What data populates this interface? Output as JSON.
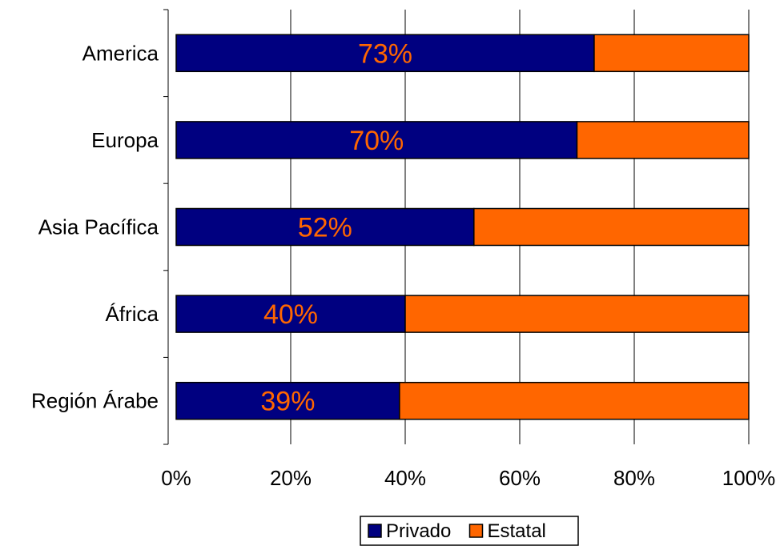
{
  "chart_data": {
    "type": "bar",
    "orientation": "horizontal",
    "stacked": "percent",
    "categories": [
      "America",
      "Europa",
      "Asia Pacífica",
      "África",
      "Región Árabe"
    ],
    "series": [
      {
        "name": "Privado",
        "values": [
          73,
          70,
          52,
          40,
          39
        ],
        "color": "#000080"
      },
      {
        "name": "Estatal",
        "values": [
          27,
          30,
          48,
          60,
          61
        ],
        "color": "#FF6600"
      }
    ],
    "data_labels": [
      "73%",
      "70%",
      "52%",
      "40%",
      "39%"
    ],
    "data_label_color": "#FF6600",
    "xlim": [
      0,
      100
    ],
    "x_ticks": [
      "0%",
      "20%",
      "40%",
      "60%",
      "80%",
      "100%"
    ],
    "grid": "vertical",
    "legend": "bottom-center",
    "title": "",
    "xlabel": "",
    "ylabel": ""
  }
}
